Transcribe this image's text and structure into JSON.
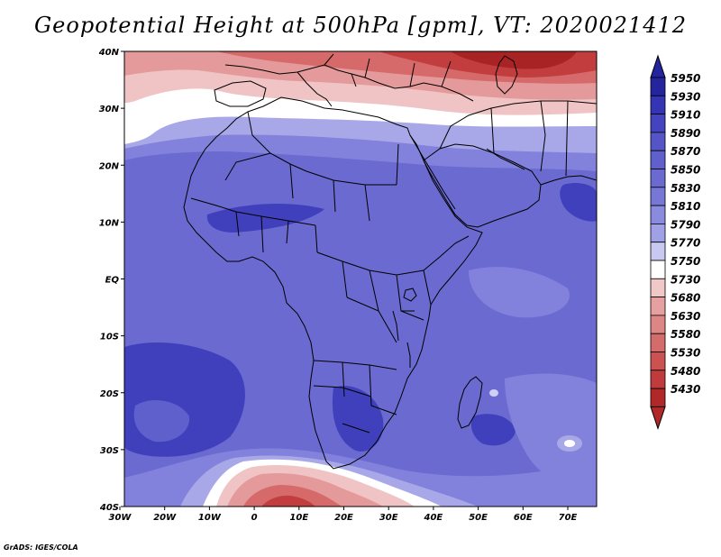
{
  "title": "Geopotential Height at 500hPa [gpm], VT: 2020021412",
  "credit": "GrADS: IGES/COLA",
  "lat_ticks": [
    "40N",
    "30N",
    "20N",
    "10N",
    "EQ",
    "10S",
    "20S",
    "30S",
    "40S"
  ],
  "lon_ticks": [
    "30W",
    "20W",
    "10W",
    "0",
    "10E",
    "20E",
    "30E",
    "40E",
    "50E",
    "60E",
    "70E"
  ],
  "colorbar": {
    "levels": [
      "5950",
      "5930",
      "5910",
      "5890",
      "5870",
      "5850",
      "5830",
      "5810",
      "5790",
      "5770",
      "5750",
      "5730",
      "5680",
      "5630",
      "5580",
      "5530",
      "5480",
      "5430"
    ],
    "colors": [
      "#24249e",
      "#3434b4",
      "#4444c0",
      "#5555c8",
      "#6060cc",
      "#6a6ad0",
      "#7777d6",
      "#8a8ade",
      "#a0a0e6",
      "#c8c8f0",
      "#ffffff",
      "#f0c8c8",
      "#e6a0a0",
      "#dc8686",
      "#d46c6c",
      "#cc5252",
      "#c03c3c",
      "#b02828"
    ]
  },
  "map_colors": {
    "tropics": "#6a6ad0",
    "deep": "#4040bc",
    "mid": "#8282dc",
    "light": "#a8a8e8",
    "pale": "#d0d0f4",
    "white": "#ffffff",
    "pink": "#f0c4c4",
    "salmon": "#e49a9a",
    "red": "#d66a6a",
    "darkred": "#c23e3e",
    "deepred": "#a82424"
  }
}
